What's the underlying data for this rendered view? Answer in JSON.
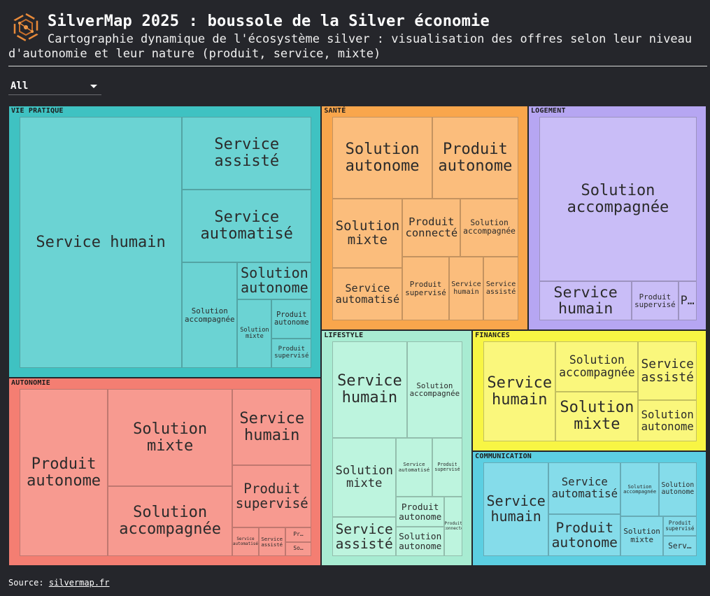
{
  "header": {
    "title": "SilverMap 2025 : boussole de la Silver économie",
    "subtitle": "Cartographie dynamique de l'écosystème silver : visualisation des offres selon leur niveau d'autonomie et leur nature (produit, service, mixte)",
    "logo_icon": "hexagon-network-logo-icon"
  },
  "filter": {
    "selected": "All",
    "icon": "caret-down-icon"
  },
  "source": {
    "label": "Source:",
    "link": "silvermap.fr"
  },
  "chart_data": {
    "type": "treemap",
    "groups": [
      {
        "name": "VIE PRATIQUE",
        "color": "#3fc2c2",
        "leaf_color": "#6bd3d3",
        "children": [
          {
            "label": "Service humain",
            "size": 104
          },
          {
            "label": "Service assisté",
            "size": 24
          },
          {
            "label": "Service automatisé",
            "size": 24
          },
          {
            "label": "Solution accompagnée",
            "size": 15
          },
          {
            "label": "Solution autonome",
            "size": 7
          },
          {
            "label": "Solution mixte",
            "size": 6
          },
          {
            "label": "Produit autonome",
            "size": 4
          },
          {
            "label": "Produit supervisé",
            "size": 3
          }
        ]
      },
      {
        "name": "AUTONOMIE",
        "color": "#f47e72",
        "leaf_color": "#f79a90",
        "children": [
          {
            "label": "Produit autonome",
            "size": 39
          },
          {
            "label": "Solution mixte",
            "size": 32
          },
          {
            "label": "Solution accompagnée",
            "size": 23
          },
          {
            "label": "Service humain",
            "size": 16
          },
          {
            "label": "Produit supervisé",
            "size": 13
          },
          {
            "label": "Service automatisé",
            "size": 2
          },
          {
            "label": "Service assisté",
            "size": 2
          },
          {
            "label": "Pr…",
            "size": 1
          },
          {
            "label": "So…",
            "size": 1
          }
        ]
      },
      {
        "name": "LIFESTYLE",
        "color": "#a8ecd2",
        "leaf_color": "#bdf4de",
        "children": [
          {
            "label": "Service humain",
            "size": 20
          },
          {
            "label": "Solution accompagnée",
            "size": 15
          },
          {
            "label": "Solution mixte",
            "size": 14
          },
          {
            "label": "Service assisté",
            "size": 7
          },
          {
            "label": "Service automatisé",
            "size": 6
          },
          {
            "label": "Produit supervisé",
            "size": 5
          },
          {
            "label": "Produit autonome",
            "size": 4
          },
          {
            "label": "Solution autonome",
            "size": 4
          },
          {
            "label": "Produit connecté",
            "size": 3
          }
        ]
      },
      {
        "name": "SANTÉ",
        "color": "#f9a64c",
        "leaf_color": "#fbbd7c",
        "children": [
          {
            "label": "Solution autonome",
            "size": 22
          },
          {
            "label": "Produit autonome",
            "size": 19
          },
          {
            "label": "Solution mixte",
            "size": 13
          },
          {
            "label": "Service automatisé",
            "size": 10
          },
          {
            "label": "Produit connecté",
            "size": 9
          },
          {
            "label": "Solution accompagnée",
            "size": 9
          },
          {
            "label": "Produit supervisé",
            "size": 8
          },
          {
            "label": "Service humain",
            "size": 6
          },
          {
            "label": "Service assisté",
            "size": 6
          }
        ]
      },
      {
        "name": "LOGEMENT",
        "color": "#b6a6f2",
        "leaf_color": "#c9bdf7",
        "children": [
          {
            "label": "Solution accompagnée",
            "size": 71
          },
          {
            "label": "Service humain",
            "size": 10
          },
          {
            "label": "Produit supervisé",
            "size": 5
          },
          {
            "label": "P…",
            "size": 2
          }
        ]
      },
      {
        "name": "COMMUNICATION",
        "color": "#5ccfe2",
        "leaf_color": "#85dcea",
        "children": [
          {
            "label": "Service humain",
            "size": 18
          },
          {
            "label": "Service automatisé",
            "size": 11
          },
          {
            "label": "Produit autonome",
            "size": 9
          },
          {
            "label": "Solution accompagnée",
            "size": 6
          },
          {
            "label": "Solution autonome",
            "size": 6
          },
          {
            "label": "Solution mixte",
            "size": 5
          },
          {
            "label": "Produit supervisé",
            "size": 2
          },
          {
            "label": "Serv…",
            "size": 2
          }
        ]
      },
      {
        "name": "FINANCES",
        "color": "#f8f544",
        "leaf_color": "#faf77c",
        "children": [
          {
            "label": "Service humain",
            "size": 21
          },
          {
            "label": "Solution accompagnée",
            "size": 12
          },
          {
            "label": "Solution mixte",
            "size": 12
          },
          {
            "label": "Service assisté",
            "size": 10
          },
          {
            "label": "Solution autonome",
            "size": 7
          }
        ]
      }
    ]
  }
}
